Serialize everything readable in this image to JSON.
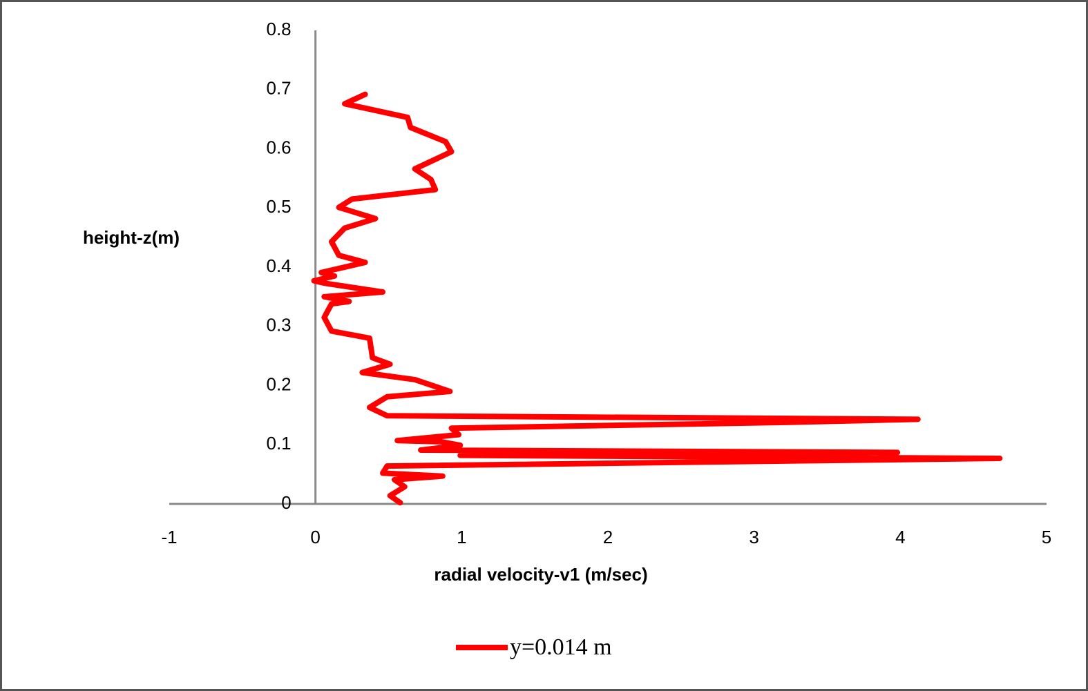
{
  "chart_data": {
    "type": "line",
    "x_label": "radial velocity-v1 (m/sec)",
    "y_label": "height-z(m)",
    "x": [
      0.58,
      0.51,
      0.61,
      0.54,
      0.87,
      0.46,
      0.49,
      4.68,
      0.99,
      3.98,
      0.72,
      0.99,
      0.86,
      0.56,
      0.98,
      0.93,
      3.27,
      4.12,
      0.49,
      0.37,
      0.49,
      0.92,
      0.68,
      0.32,
      0.51,
      0.39,
      0.37,
      0.11,
      0.06,
      0.11,
      0.23,
      0.06,
      0.46,
      0.06,
      -0.01,
      0.13,
      0.04,
      0.34,
      0.16,
      0.11,
      0.2,
      0.41,
      0.16,
      0.25,
      0.82,
      0.79,
      0.68,
      0.93,
      0.89,
      0.65,
      0.63,
      0.2,
      0.34
    ],
    "series": [
      {
        "name": "y=0.014 m",
        "color": "#ff0000",
        "values": [
          0.002,
          0.014,
          0.029,
          0.041,
          0.047,
          0.052,
          0.064,
          0.077,
          0.082,
          0.087,
          0.091,
          0.099,
          0.105,
          0.107,
          0.117,
          0.128,
          0.138,
          0.143,
          0.149,
          0.163,
          0.181,
          0.19,
          0.21,
          0.222,
          0.236,
          0.247,
          0.28,
          0.292,
          0.315,
          0.338,
          0.342,
          0.35,
          0.358,
          0.373,
          0.377,
          0.385,
          0.391,
          0.408,
          0.42,
          0.443,
          0.466,
          0.482,
          0.501,
          0.515,
          0.531,
          0.548,
          0.566,
          0.595,
          0.612,
          0.636,
          0.653,
          0.676,
          0.692
        ]
      }
    ],
    "xlim": [
      -1,
      5
    ],
    "xticks": [
      -1,
      0,
      1,
      2,
      3,
      4,
      5
    ],
    "ylim": [
      0,
      0.8
    ],
    "yticks": [
      0,
      0.1,
      0.2,
      0.3,
      0.4,
      0.5,
      0.6,
      0.7,
      0.8
    ],
    "grid": false,
    "legend": "bottom"
  }
}
